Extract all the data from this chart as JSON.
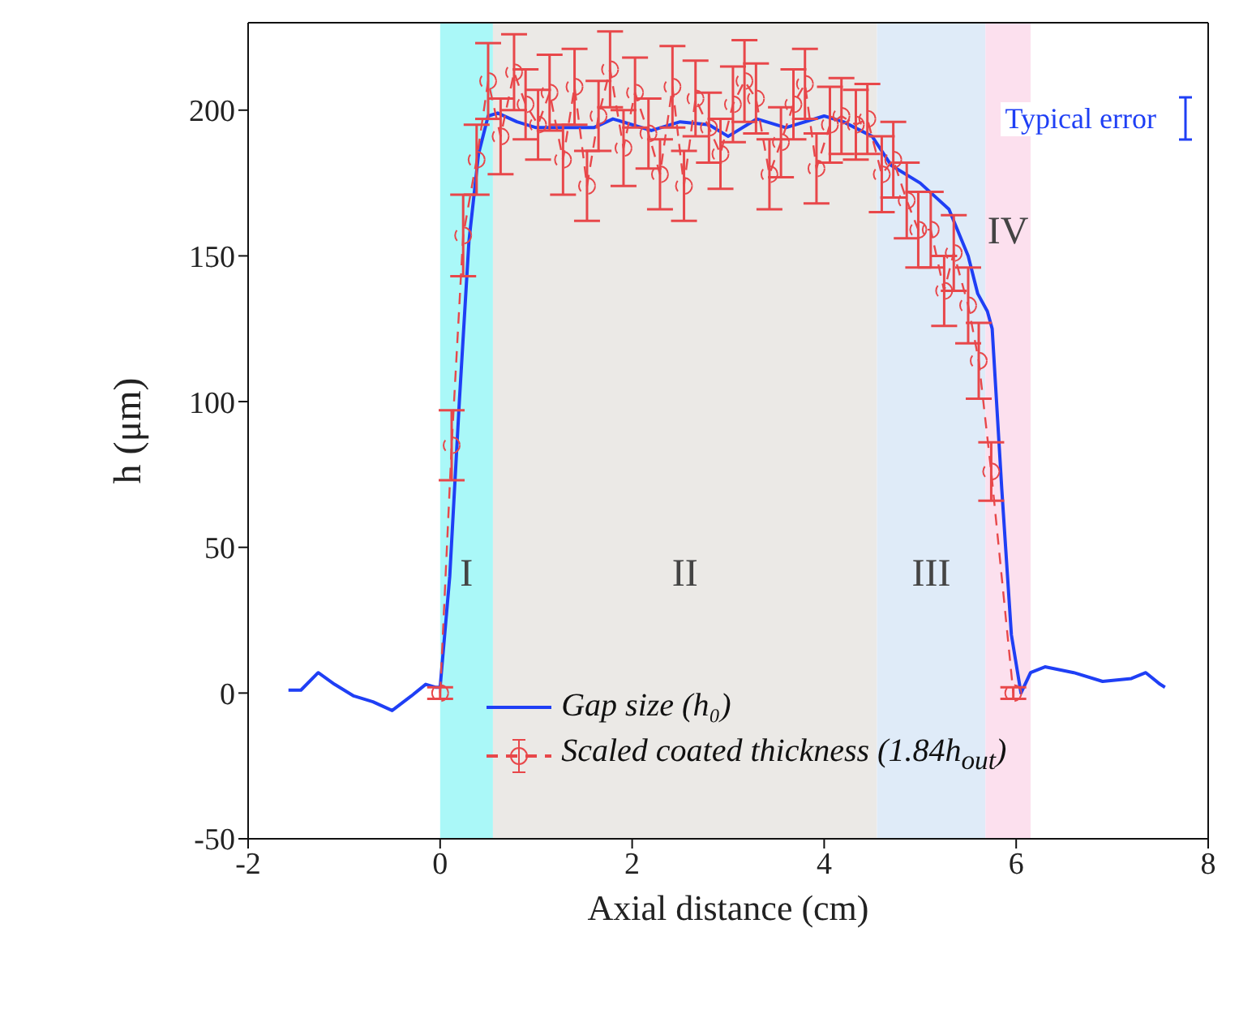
{
  "chart_data": {
    "type": "line",
    "xlabel": "Axial distance (cm)",
    "ylabel": "h (μm)",
    "xlim": [
      -2,
      8
    ],
    "xticks": [
      -2,
      0,
      2,
      4,
      6,
      8
    ],
    "ylim": [
      -50,
      230
    ],
    "yticks": [
      -50,
      0,
      50,
      100,
      150,
      200
    ],
    "grid": false,
    "legend": "bottom",
    "series": [
      {
        "name": "Gap size (h₀)",
        "color": "#1f3ff5",
        "line_style": "solid",
        "marker": "none",
        "x": [
          -1.58,
          -1.45,
          -1.27,
          -1.1,
          -0.9,
          -0.7,
          -0.5,
          -0.3,
          -0.15,
          -0.05,
          0,
          0.1,
          0.2,
          0.3,
          0.4,
          0.5,
          0.6,
          0.8,
          1.0,
          1.3,
          1.6,
          1.8,
          2.0,
          2.2,
          2.5,
          2.8,
          3.0,
          3.3,
          3.6,
          4.0,
          4.2,
          4.5,
          4.7,
          5.0,
          5.3,
          5.5,
          5.6,
          5.7,
          5.75,
          5.85,
          5.95,
          6.05,
          6.15,
          6.3,
          6.6,
          6.9,
          7.2,
          7.35,
          7.5,
          7.55
        ],
        "values": [
          1,
          1,
          7,
          3,
          -1,
          -3,
          -6,
          -1,
          3,
          2,
          2,
          40,
          100,
          155,
          185,
          198,
          199,
          196,
          194,
          194,
          194,
          197,
          195,
          193,
          196,
          195,
          191,
          197,
          194,
          198,
          196,
          191,
          181,
          175,
          166,
          150,
          137,
          131,
          125,
          70,
          20,
          0,
          7,
          9,
          7,
          4,
          5,
          7,
          3,
          2
        ]
      },
      {
        "name": "Scaled coated thickness (1.84h$_{out}$)",
        "color": "#e8474a",
        "line_style": "dashed",
        "marker": "circle",
        "x": [
          0,
          0.12,
          0.24,
          0.38,
          0.5,
          0.63,
          0.77,
          0.89,
          1.02,
          1.14,
          1.28,
          1.4,
          1.53,
          1.65,
          1.77,
          1.91,
          2.03,
          2.17,
          2.29,
          2.42,
          2.54,
          2.66,
          2.8,
          2.92,
          3.05,
          3.17,
          3.29,
          3.43,
          3.55,
          3.68,
          3.8,
          3.92,
          4.06,
          4.18,
          4.33,
          4.45,
          4.6,
          4.72,
          4.86,
          4.98,
          5.11,
          5.25,
          5.35,
          5.5,
          5.61,
          5.74,
          5.97
        ],
        "values": [
          0,
          85,
          157,
          183,
          210,
          191,
          213,
          202,
          195,
          206,
          183,
          208,
          174,
          198,
          214,
          187,
          206,
          192,
          178,
          208,
          174,
          204,
          194,
          185,
          202,
          210,
          204,
          178,
          189,
          202,
          209,
          180,
          195,
          198,
          195,
          197,
          178,
          183,
          169,
          159,
          159,
          138,
          151,
          133,
          114,
          76,
          0
        ],
        "errors": [
          2,
          12,
          14,
          12,
          13,
          13,
          13,
          12,
          12,
          13,
          12,
          13,
          12,
          12,
          13,
          13,
          12,
          12,
          12,
          14,
          12,
          13,
          12,
          12,
          13,
          14,
          12,
          12,
          12,
          12,
          12,
          12,
          13,
          13,
          12,
          12,
          13,
          13,
          13,
          13,
          13,
          12,
          13,
          13,
          13,
          10,
          2
        ]
      }
    ],
    "bands": [
      {
        "axis": "x",
        "from": 0,
        "to": 0.55,
        "label": "I",
        "color": "#aaf8f8"
      },
      {
        "axis": "x",
        "from": 0.55,
        "to": 4.55,
        "label": "II",
        "color": "#ebe9e6"
      },
      {
        "axis": "x",
        "from": 4.55,
        "to": 5.68,
        "label": "III",
        "color": "#dfebf8"
      },
      {
        "axis": "x",
        "from": 5.68,
        "to": 6.15,
        "label": "IV",
        "color": "#fce0ee"
      }
    ],
    "annotations": [
      "Typical error"
    ]
  }
}
